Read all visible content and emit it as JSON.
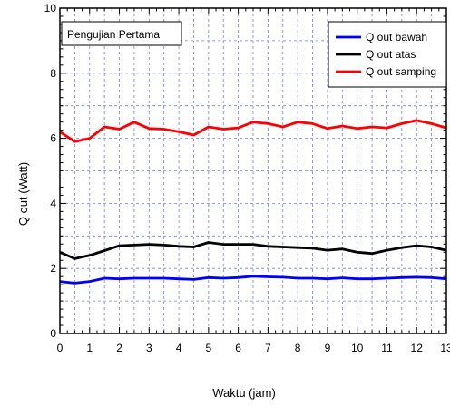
{
  "chart_data": {
    "type": "line",
    "title": "",
    "annotation": "Pengujian Pertama",
    "xlabel": "Waktu (jam)",
    "ylabel": "Q out (Watt)",
    "xlim": [
      0,
      13
    ],
    "ylim": [
      0,
      10
    ],
    "xticks": [
      "0",
      "1",
      "2",
      "3",
      "4",
      "5",
      "6",
      "7",
      "8",
      "9",
      "10",
      "11",
      "12",
      "13"
    ],
    "yticks": [
      "0",
      "2",
      "4",
      "6",
      "8",
      "10"
    ],
    "grid": true,
    "legend_position": "top-right",
    "x": [
      0,
      0.5,
      1,
      1.5,
      2,
      2.5,
      3,
      3.5,
      4,
      4.5,
      5,
      5.5,
      6,
      6.5,
      7,
      7.5,
      8,
      8.5,
      9,
      9.5,
      10,
      10.5,
      11,
      11.5,
      12,
      12.5,
      13
    ],
    "series": [
      {
        "name": "Q out bawah",
        "color": "#0000ff",
        "values": [
          1.6,
          1.55,
          1.6,
          1.7,
          1.68,
          1.7,
          1.7,
          1.7,
          1.68,
          1.66,
          1.72,
          1.7,
          1.72,
          1.76,
          1.74,
          1.73,
          1.7,
          1.7,
          1.68,
          1.71,
          1.68,
          1.68,
          1.7,
          1.72,
          1.73,
          1.72,
          1.68
        ]
      },
      {
        "name": "Q out atas",
        "color": "#000000",
        "values": [
          2.5,
          2.3,
          2.4,
          2.55,
          2.7,
          2.72,
          2.74,
          2.72,
          2.68,
          2.66,
          2.8,
          2.74,
          2.74,
          2.74,
          2.68,
          2.66,
          2.64,
          2.62,
          2.56,
          2.6,
          2.5,
          2.46,
          2.56,
          2.64,
          2.7,
          2.66,
          2.56
        ]
      },
      {
        "name": "Q out samping",
        "color": "#ff0000",
        "values": [
          6.2,
          5.9,
          6.0,
          6.35,
          6.28,
          6.5,
          6.3,
          6.28,
          6.2,
          6.1,
          6.35,
          6.28,
          6.32,
          6.5,
          6.45,
          6.35,
          6.5,
          6.45,
          6.3,
          6.38,
          6.3,
          6.35,
          6.32,
          6.45,
          6.55,
          6.45,
          6.32
        ]
      }
    ]
  }
}
